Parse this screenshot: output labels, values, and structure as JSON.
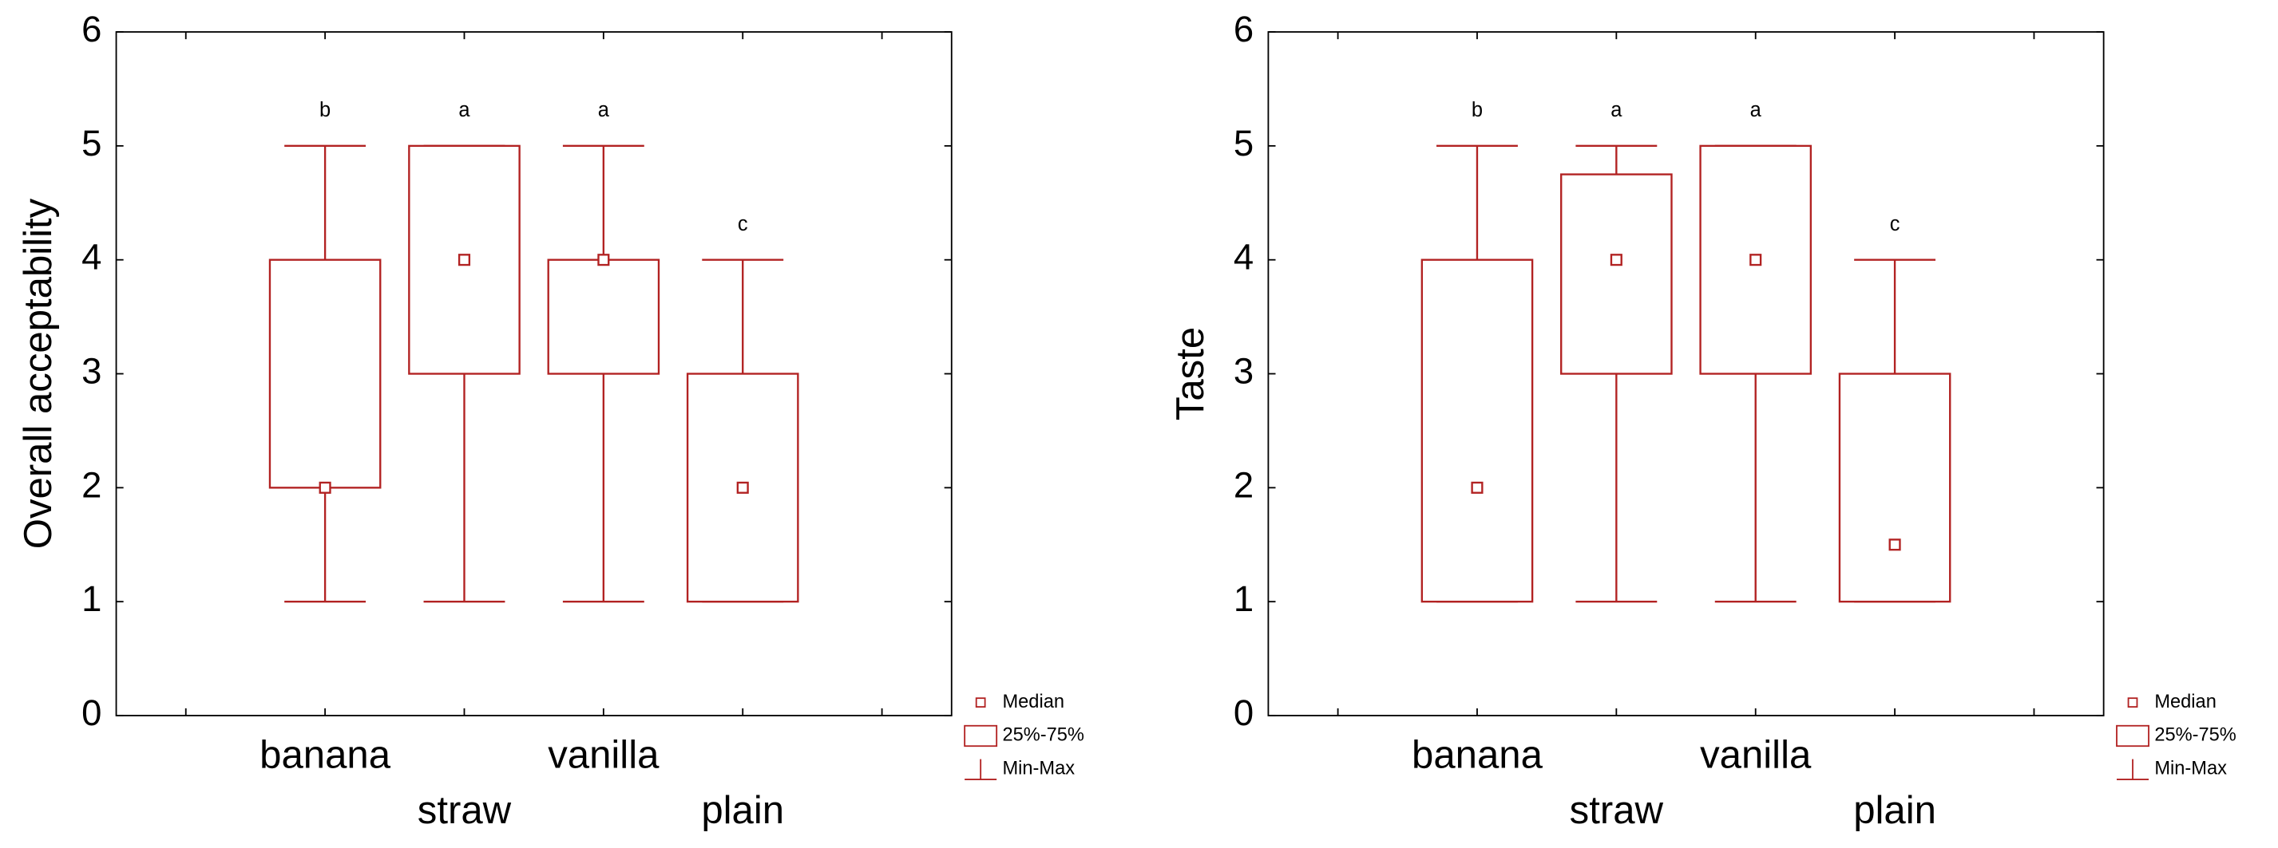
{
  "chart_data": [
    {
      "type": "box",
      "ylabel": "Overall acceptability",
      "categories": [
        "banana",
        "straw",
        "vanilla",
        "plain"
      ],
      "min": [
        1,
        1,
        1,
        1
      ],
      "q1": [
        2,
        3,
        3,
        1
      ],
      "median": [
        2,
        4,
        4,
        2
      ],
      "q3": [
        4,
        5,
        4,
        3
      ],
      "max": [
        5,
        5,
        5,
        4
      ],
      "letters": [
        "b",
        "a",
        "a",
        "c"
      ],
      "color": "#b22222",
      "ylim": [
        0,
        6
      ],
      "yticks": [
        0,
        1,
        2,
        3,
        4,
        5,
        6
      ],
      "legend": [
        "Median",
        "25%-75%",
        "Min-Max"
      ]
    },
    {
      "type": "box",
      "ylabel": "Taste",
      "categories": [
        "banana",
        "straw",
        "vanilla",
        "plain"
      ],
      "min": [
        1,
        1,
        1,
        1
      ],
      "q1": [
        1,
        3,
        3,
        1
      ],
      "median": [
        2,
        4,
        4,
        1.5
      ],
      "q3": [
        4,
        4.75,
        5,
        3
      ],
      "max": [
        5,
        5,
        5,
        4
      ],
      "letters": [
        "b",
        "a",
        "a",
        "c"
      ],
      "color": "#b22222",
      "ylim": [
        0,
        6
      ],
      "yticks": [
        0,
        1,
        2,
        3,
        4,
        5,
        6
      ],
      "legend": [
        "Median",
        "25%-75%",
        "Min-Max"
      ]
    }
  ]
}
